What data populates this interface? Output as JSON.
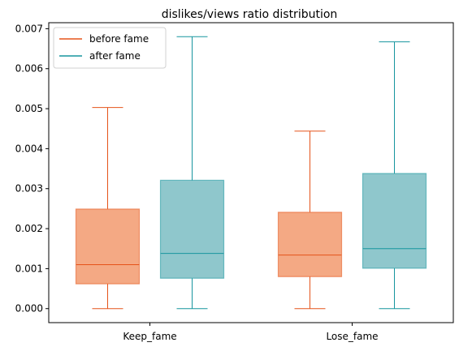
{
  "chart_data": {
    "type": "boxplot",
    "title": "dislikes/views ratio distribution",
    "xlabel": "",
    "ylabel": "",
    "categories": [
      "Keep_fame",
      "Lose_fame"
    ],
    "ylim": [
      -0.00035,
      0.00715
    ],
    "yticks": [
      "0.000",
      "0.001",
      "0.002",
      "0.003",
      "0.004",
      "0.005",
      "0.006",
      "0.007"
    ],
    "grid": false,
    "legend_position": "top-left",
    "series": [
      {
        "name": "before fame",
        "line_color": "#e5531a",
        "fill_color": "#f4a984",
        "boxes": [
          {
            "whislo": 0.0,
            "q1": 0.00062,
            "med": 0.0011,
            "q3": 0.00249,
            "whishi": 0.00503
          },
          {
            "whislo": 0.0,
            "q1": 0.0008,
            "med": 0.00134,
            "q3": 0.00241,
            "whishi": 0.00444
          }
        ]
      },
      {
        "name": "after fame",
        "line_color": "#17959e",
        "fill_color": "#8fc7cc",
        "boxes": [
          {
            "whislo": 0.0,
            "q1": 0.00076,
            "med": 0.00138,
            "q3": 0.00321,
            "whishi": 0.0068
          },
          {
            "whislo": 0.0,
            "q1": 0.00101,
            "med": 0.0015,
            "q3": 0.00338,
            "whishi": 0.00667
          }
        ]
      }
    ]
  }
}
